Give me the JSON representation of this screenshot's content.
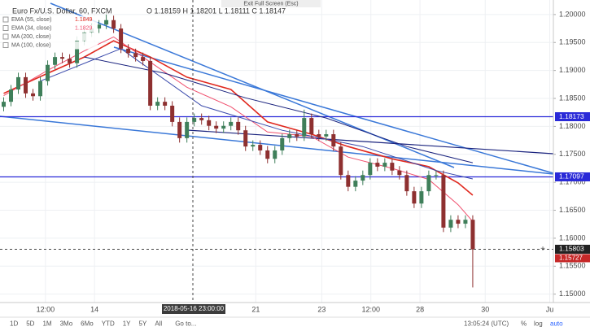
{
  "header": {
    "exit": "Exit Full Screen (Esc)"
  },
  "chart_data": {
    "type": "candlestick",
    "title": "Euro Fx/U.S. Dollar, 60, FXCM",
    "ohlc_legend": "O 1.18159 H 1.18201 L 1.18111 C 1.18147",
    "up_color": "#3f7f5a",
    "down_color": "#8e3030",
    "log_scale": false,
    "grid": true,
    "open": [
      1.1835,
      1.1844,
      1.1866,
      1.1888,
      1.1859,
      1.1854,
      1.1881,
      1.191,
      1.1924,
      1.1921,
      1.1913,
      1.1953,
      1.1968,
      1.1975,
      1.1982,
      1.199,
      1.1975,
      1.1939,
      1.1931,
      1.1924,
      1.1917,
      1.1837,
      1.1844,
      1.1837,
      1.1808,
      1.1779,
      1.1808,
      1.1815,
      1.1811,
      1.1801,
      1.1796,
      1.1801,
      1.1808,
      1.1793,
      1.1764,
      1.1767,
      1.1757,
      1.1742,
      1.1757,
      1.1779,
      1.1786,
      1.1782,
      1.1815,
      1.1786,
      1.1782,
      1.1786,
      1.1764,
      1.1713,
      1.1692,
      1.1703,
      1.1713,
      1.1735,
      1.1728,
      1.1735,
      1.1721,
      1.1713,
      1.1684,
      1.1662,
      1.1684,
      1.1713,
      1.1713,
      1.1619,
      1.1633,
      1.1626,
      1.1633
    ],
    "high": [
      1.1852,
      1.1874,
      1.1896,
      1.1896,
      1.1867,
      1.1889,
      1.1918,
      1.1932,
      1.1932,
      1.1929,
      1.1961,
      1.1976,
      1.1983,
      1.199,
      1.2,
      1.1998,
      1.1983,
      1.1947,
      1.1939,
      1.1932,
      1.1925,
      1.1852,
      1.1852,
      1.1845,
      1.1816,
      1.1816,
      1.1823,
      1.1823,
      1.1819,
      1.1809,
      1.1809,
      1.1816,
      1.1816,
      1.1801,
      1.1775,
      1.1775,
      1.1765,
      1.1765,
      1.1787,
      1.1794,
      1.1794,
      1.183,
      1.1823,
      1.1794,
      1.1794,
      1.1794,
      1.1772,
      1.1721,
      1.1711,
      1.1721,
      1.1743,
      1.1743,
      1.1743,
      1.1743,
      1.1729,
      1.1721,
      1.1692,
      1.1692,
      1.1721,
      1.1721,
      1.1721,
      1.1641,
      1.1641,
      1.1641,
      1.1641
    ],
    "low": [
      1.1827,
      1.1836,
      1.1858,
      1.1851,
      1.1846,
      1.1846,
      1.1873,
      1.1902,
      1.1913,
      1.1905,
      1.1905,
      1.1945,
      1.196,
      1.1967,
      1.1974,
      1.1967,
      1.1931,
      1.1923,
      1.1916,
      1.1909,
      1.1829,
      1.1829,
      1.1829,
      1.18,
      1.1771,
      1.1771,
      1.18,
      1.1803,
      1.1793,
      1.1788,
      1.1788,
      1.1793,
      1.1785,
      1.1756,
      1.1756,
      1.1749,
      1.1734,
      1.1734,
      1.1749,
      1.1771,
      1.1774,
      1.1774,
      1.1778,
      1.1774,
      1.1774,
      1.1756,
      1.1705,
      1.1684,
      1.1684,
      1.1695,
      1.1705,
      1.172,
      1.172,
      1.1713,
      1.1705,
      1.1676,
      1.1654,
      1.1654,
      1.1676,
      1.1705,
      1.1611,
      1.1611,
      1.1618,
      1.1618,
      1.1512
    ],
    "close": [
      1.1844,
      1.1866,
      1.1888,
      1.1859,
      1.1854,
      1.1881,
      1.191,
      1.1924,
      1.1921,
      1.1913,
      1.1953,
      1.1968,
      1.1975,
      1.1982,
      1.199,
      1.1975,
      1.1939,
      1.1931,
      1.1924,
      1.1917,
      1.1837,
      1.1844,
      1.1837,
      1.1808,
      1.1779,
      1.1808,
      1.1815,
      1.1811,
      1.1801,
      1.1796,
      1.1801,
      1.1808,
      1.1793,
      1.1764,
      1.1767,
      1.1757,
      1.1742,
      1.1757,
      1.1779,
      1.1786,
      1.1782,
      1.1815,
      1.1786,
      1.1782,
      1.1786,
      1.1764,
      1.1713,
      1.1692,
      1.1703,
      1.1713,
      1.1735,
      1.1728,
      1.1735,
      1.1721,
      1.1713,
      1.1684,
      1.1662,
      1.1684,
      1.1713,
      1.1713,
      1.1619,
      1.1633,
      1.1626,
      1.1633,
      1.158
    ],
    "indicators": [
      {
        "name": "EMA (55, close)",
        "legend_value": 1.1849,
        "color": "#e0281e",
        "width": 1.6,
        "x": [
          0,
          6,
          11,
          15,
          20,
          25,
          31,
          36,
          42,
          47,
          53,
          58,
          62,
          64
        ],
        "values": [
          1.1859,
          1.1895,
          1.1924,
          1.1953,
          1.1924,
          1.1888,
          1.1866,
          1.1808,
          1.1786,
          1.1764,
          1.1742,
          1.1728,
          1.1699,
          1.1677
        ]
      },
      {
        "name": "EMA (34, close)",
        "legend_value": 1.1829,
        "color": "#f0506e",
        "width": 1,
        "x": [
          0,
          6,
          11,
          15,
          20,
          25,
          31,
          36,
          42,
          47,
          53,
          58,
          62,
          64
        ],
        "values": [
          1.1855,
          1.19,
          1.1935,
          1.196,
          1.1915,
          1.187,
          1.1835,
          1.179,
          1.1782,
          1.1745,
          1.1725,
          1.1705,
          1.166,
          1.163
        ]
      },
      {
        "name": "MA (200, close)",
        "color": "#1a237e",
        "width": 1,
        "x": [
          11,
          22,
          33,
          44,
          55,
          64
        ],
        "values": [
          1.1924,
          1.1895,
          1.1851,
          1.1815,
          1.1764,
          1.1735
        ]
      },
      {
        "name": "MA (100, close)",
        "color": "#3949ab",
        "width": 1,
        "x": [
          5,
          16,
          27,
          38,
          49,
          59,
          64
        ],
        "values": [
          1.1881,
          1.1939,
          1.1837,
          1.1793,
          1.1764,
          1.1721,
          1.1706
        ]
      }
    ],
    "levels": [
      1.18173,
      1.17097
    ],
    "last_price": 1.15803,
    "last_price_sub": 1.15727,
    "crosshair_label": "2018-05-16 23:00:00",
    "xlim": [
      -0.5,
      75
    ],
    "xticks": [
      {
        "value": 5.7,
        "label": "12:00"
      },
      {
        "value": 12.4,
        "label": "14"
      },
      {
        "value": 34.4,
        "label": "21"
      },
      {
        "value": 43.4,
        "label": "23"
      },
      {
        "value": 50.1,
        "label": "12:00"
      },
      {
        "value": 56.8,
        "label": "28"
      },
      {
        "value": 65.7,
        "label": "30"
      },
      {
        "value": 74.5,
        "label": "Ju"
      }
    ],
    "ylim": [
      1.1485,
      1.2026
    ],
    "yticks": [
      {
        "value": 1.15,
        "label": "1.15000"
      },
      {
        "value": 1.155,
        "label": "1.15500"
      },
      {
        "value": 1.16,
        "label": "1.16000"
      },
      {
        "value": 1.165,
        "label": "1.16500"
      },
      {
        "value": 1.17,
        "label": "1.17000"
      },
      {
        "value": 1.175,
        "label": "1.17500"
      },
      {
        "value": 1.18,
        "label": "1.18000"
      },
      {
        "value": 1.185,
        "label": "1.18500"
      },
      {
        "value": 1.19,
        "label": "1.19000"
      },
      {
        "value": 1.195,
        "label": "1.19500"
      },
      {
        "value": 1.2,
        "label": "1.20000"
      }
    ]
  },
  "toolbar": {
    "ranges": [
      "1D",
      "5D",
      "1M",
      "3Mo",
      "6Mo",
      "YTD",
      "1Y",
      "5Y",
      "All"
    ],
    "goto": "Go to...",
    "time": "13:05:24 (UTC)",
    "percent": "%",
    "log": "log",
    "auto": "auto"
  }
}
